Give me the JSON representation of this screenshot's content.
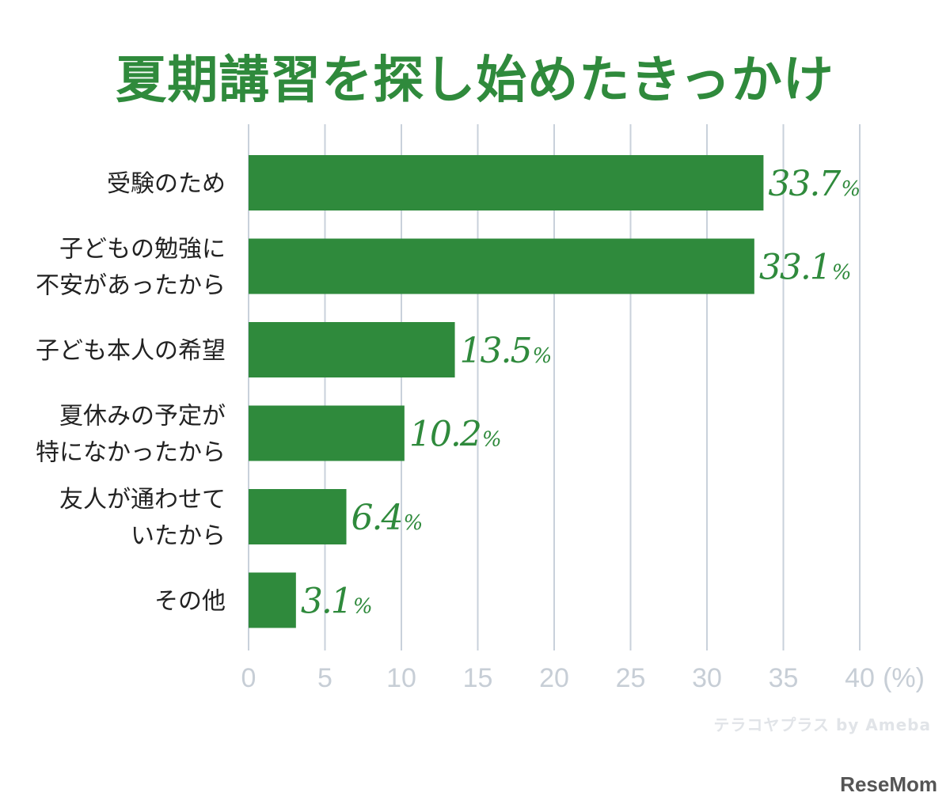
{
  "chart_data": {
    "type": "bar",
    "orientation": "horizontal",
    "title": "夏期講習を探し始めたきっかけ",
    "categories": [
      [
        "受験のため"
      ],
      [
        "子どもの勉強に",
        "不安があったから"
      ],
      [
        "子ども本人の希望"
      ],
      [
        "夏休みの予定が",
        "特になかったから"
      ],
      [
        "友人が通わせて",
        "いたから"
      ],
      [
        "その他"
      ]
    ],
    "values": [
      33.7,
      33.1,
      13.5,
      10.2,
      6.4,
      3.1
    ],
    "value_labels": [
      "33.7",
      "33.1",
      "13.5",
      "10.2",
      "6.4",
      "3.1"
    ],
    "value_suffix": "%",
    "xlim": [
      0,
      40
    ],
    "xticks": [
      "0",
      "5",
      "10",
      "15",
      "20",
      "25",
      "30",
      "35",
      "40"
    ],
    "unit_label": "(%)",
    "grid": true,
    "colors": {
      "bar": "#2f8a3c",
      "title": "#2f8a3c",
      "grid": "#c9d1db",
      "tick": "#c7ced6"
    }
  },
  "watermarks": {
    "terako": "テラコヤプラス by Ameba",
    "resemom": "ReseMom"
  }
}
